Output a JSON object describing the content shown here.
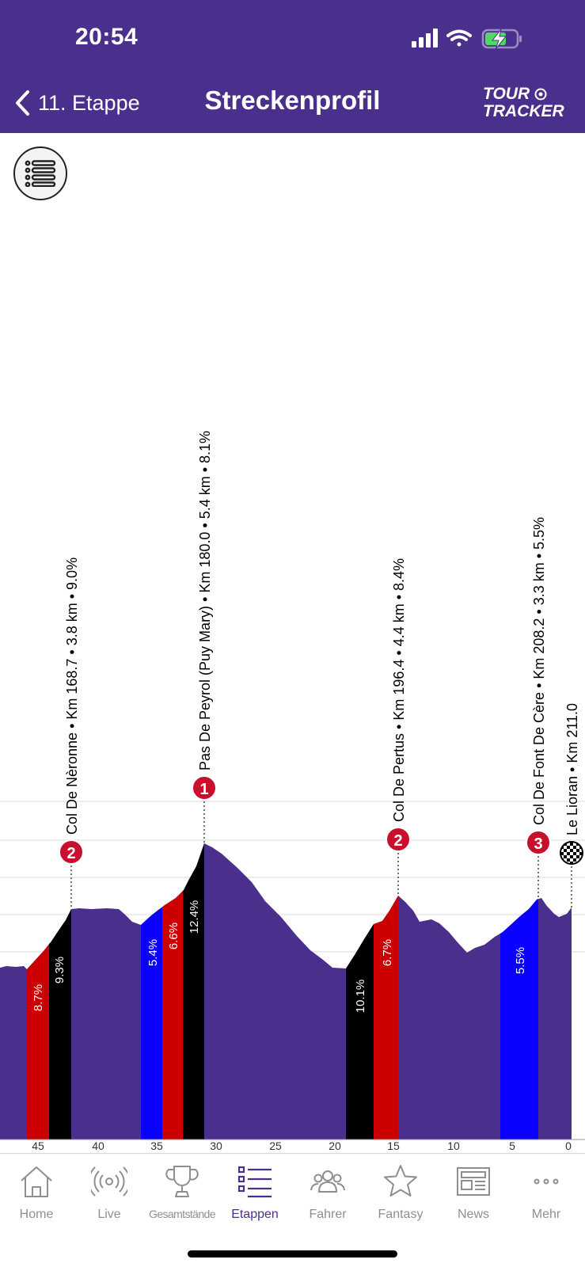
{
  "status": {
    "time": "20:54"
  },
  "header": {
    "back_label": "11. Etappe",
    "title": "Streckenprofil",
    "logo_line1": "TOUR",
    "logo_line2": "TRACKER"
  },
  "colors": {
    "brand": "#4b2f8c",
    "red": "#cc0000",
    "black": "#000000",
    "blue": "#0a00ff",
    "badge": "#c8102e"
  },
  "profile": {
    "climbs": [
      {
        "category": "2",
        "label": "Col De Nèronne • Km 168.7 • 3.8 km • 9.0%"
      },
      {
        "category": "1",
        "label": "Pas De Peyrol (Puy Mary)  • Km 180.0 • 5.4 km • 8.1%"
      },
      {
        "category": "2",
        "label": "Col De Pertus • Km 196.4 • 4.4 km • 8.4%"
      },
      {
        "category": "3",
        "label": "Col De Font De Cère • Km 208.2 • 3.3 km • 5.5%"
      }
    ],
    "finish_label": "Le Lioran • Km 211.0",
    "segments": [
      {
        "gradient": "8.7%",
        "color": "red"
      },
      {
        "gradient": "9.3%",
        "color": "black"
      },
      {
        "gradient": "5.4%",
        "color": "blue"
      },
      {
        "gradient": "6.6%",
        "color": "red"
      },
      {
        "gradient": "12.4%",
        "color": "black"
      },
      {
        "gradient": "10.1%",
        "color": "black"
      },
      {
        "gradient": "6.7%",
        "color": "red"
      },
      {
        "gradient": "5.5%",
        "color": "blue"
      }
    ],
    "axis_ticks": [
      "45",
      "40",
      "35",
      "30",
      "25",
      "20",
      "15",
      "10",
      "5",
      "0"
    ]
  },
  "nav": {
    "items": [
      {
        "label": "Home",
        "icon": "home-icon"
      },
      {
        "label": "Live",
        "icon": "broadcast-icon"
      },
      {
        "label": "Gesamtstände",
        "icon": "trophy-icon"
      },
      {
        "label": "Etappen",
        "icon": "list-icon"
      },
      {
        "label": "Fahrer",
        "icon": "riders-icon"
      },
      {
        "label": "Fantasy",
        "icon": "star-icon"
      },
      {
        "label": "News",
        "icon": "newspaper-icon"
      },
      {
        "label": "Mehr",
        "icon": "more-icon"
      }
    ]
  }
}
